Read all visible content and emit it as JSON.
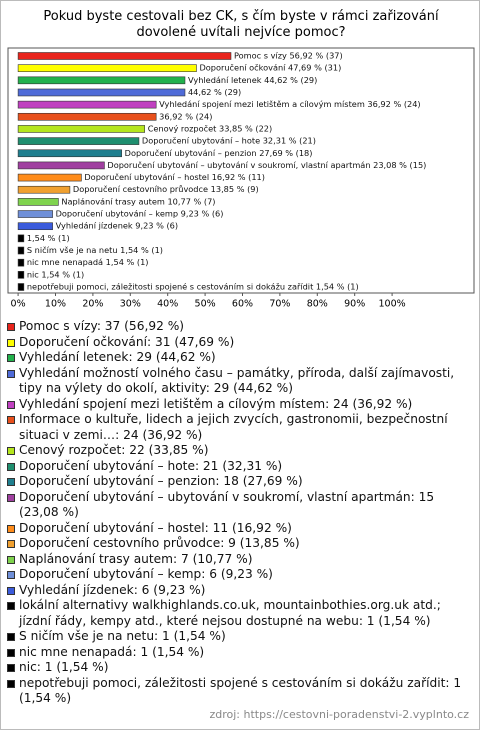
{
  "chart_data": {
    "type": "bar",
    "title": "Pokud byste cestovali bez CK, s čím byste v rámci zařizování dovolené uvítali nejvíce pomoc?",
    "values": [
      56.92,
      47.69,
      44.62,
      44.62,
      36.92,
      36.92,
      33.85,
      32.31,
      27.69,
      23.08,
      16.92,
      13.85,
      10.77,
      9.23,
      9.23,
      1.54,
      1.54,
      1.54,
      1.54,
      1.54
    ],
    "value_labels": [
      "Pomoc s vízy 56,92 % (37)",
      "Doporučení očkování 47,69 % (31)",
      "Vyhledání letenek 44,62 % (29)",
      "44,62 % (29)",
      "Vyhledání spojení mezi letištěm a cílovým místem 36,92 % (24)",
      "36,92 % (24)",
      "Cenový rozpočet 33,85 % (22)",
      "Doporučení ubytování – hote 32,31 % (21)",
      "Doporučení ubytování – penzion 27,69 % (18)",
      "Doporučení ubytování – ubytování v soukromí, vlastní apartmán 23,08 % (15)",
      "Doporučení ubytování – hostel 16,92 % (11)",
      "Doporučení cestovního průvodce 13,85 % (9)",
      "Naplánování trasy autem 10,77 % (7)",
      "Doporučení ubytování – kemp 9,23 % (6)",
      "Vyhledání jízdenek 9,23 % (6)",
      "1,54 % (1)",
      "S ničím vše je na netu 1,54 % (1)",
      "nic mne nenapadá 1,54 % (1)",
      "nic 1,54 % (1)",
      "nepotřebuji pomoci, záležitosti spojené s cestováním si dokážu zařídit 1,54 % (1)"
    ],
    "colors": [
      "#e8241c",
      "#ffff00",
      "#22b14c",
      "#4f6bd8",
      "#c040c0",
      "#e8501c",
      "#b5e61d",
      "#1f8f6f",
      "#1f7f8f",
      "#a040a0",
      "#ff8c1a",
      "#f0a030",
      "#7fd34e",
      "#6f8fd8",
      "#3b5bdb",
      "#000000",
      "#000000",
      "#000000",
      "#000000",
      "#000000"
    ],
    "legend": [
      "Pomoc s vízy: 37 (56,92 %)",
      "Doporučení očkování: 31 (47,69 %)",
      "Vyhledání letenek: 29 (44,62 %)",
      "Vyhledání možností volného času – památky, příroda, další zajímavosti, tipy na výlety do okolí, aktivity: 29 (44,62 %)",
      "Vyhledání spojení mezi letištěm a cílovým místem: 24 (36,92 %)",
      "Informace o kultuře, lidech a jejich zvycích, gastronomii, bezpečnostní situaci v zemi…: 24 (36,92 %)",
      "Cenový rozpočet: 22 (33,85 %)",
      "Doporučení ubytování – hote: 21 (32,31 %)",
      "Doporučení ubytování – penzion: 18 (27,69 %)",
      "Doporučení ubytování – ubytování v soukromí, vlastní apartmán: 15 (23,08 %)",
      "Doporučení ubytování – hostel: 11 (16,92 %)",
      "Doporučení cestovního průvodce: 9 (13,85 %)",
      "Naplánování trasy autem: 7 (10,77 %)",
      "Doporučení ubytování – kemp: 6 (9,23 %)",
      "Vyhledání jízdenek: 6 (9,23 %)",
      "lokální alternativy walkhighlands.co.uk, mountainbothies.org.uk atd.; jízdní řády, kempy atd., které nejsou dostupné na webu: 1 (1,54 %)",
      "S ničím vše je na netu: 1 (1,54 %)",
      "nic mne nenapadá: 1 (1,54 %)",
      "nic: 1 (1,54 %)",
      "nepotřebuji pomoci, záležitosti spojené s cestováním si dokážu zařídit: 1 (1,54 %)"
    ],
    "xlim": [
      -2.7,
      121.9
    ],
    "xticks": [
      {
        "value": 0,
        "label": "0%"
      },
      {
        "value": 10,
        "label": "10%"
      },
      {
        "value": 20,
        "label": "20%"
      },
      {
        "value": 30,
        "label": "30%"
      },
      {
        "value": 40,
        "label": "40%"
      },
      {
        "value": 50,
        "label": "50%"
      },
      {
        "value": 60,
        "label": "60%"
      },
      {
        "value": 70,
        "label": "70%"
      },
      {
        "value": 80,
        "label": "80%"
      },
      {
        "value": 90,
        "label": "90%"
      },
      {
        "value": 100,
        "label": "100%"
      }
    ],
    "source": "zdroj: https://cestovni-poradenstvi-2.vyplnto.cz"
  }
}
